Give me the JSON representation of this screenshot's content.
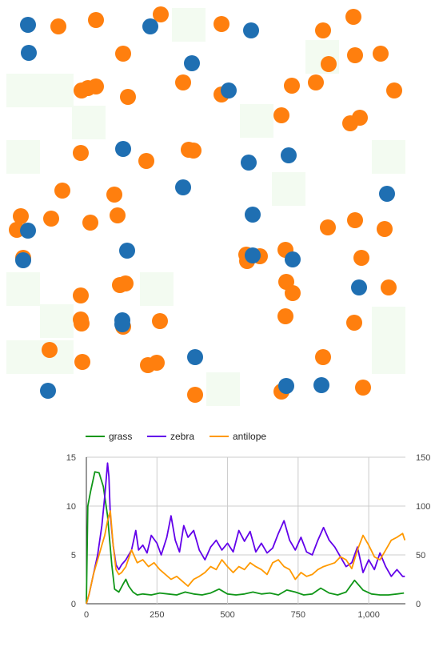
{
  "simulation": {
    "grass_color": "#f3fbf1",
    "zebra_color": "#1f6fb2",
    "antilope_color": "#ff7f0e"
  },
  "chart_data": {
    "type": "line",
    "title": "",
    "xlabel": "",
    "ylabel_left": "",
    "ylabel_right": "",
    "xlim": [
      0,
      1130
    ],
    "ylim_left": [
      0,
      15
    ],
    "ylim_right": [
      0,
      150
    ],
    "x_ticks": [
      0,
      250,
      500,
      750,
      1000
    ],
    "x_tick_labels": [
      "0",
      "250",
      "500",
      "750",
      "1,000"
    ],
    "y_left_ticks": [
      0,
      5,
      10,
      15
    ],
    "y_left_tick_labels": [
      "0",
      "5",
      "10",
      "15"
    ],
    "y_right_ticks": [
      0,
      50,
      100,
      150
    ],
    "y_right_tick_labels": [
      "0",
      "50",
      "100",
      "150"
    ],
    "grid": true,
    "legend_position": "top-left",
    "series": [
      {
        "name": "grass",
        "color": "#109618",
        "axis": "right",
        "x": [
          0,
          5,
          15,
          30,
          45,
          60,
          75,
          90,
          100,
          115,
          130,
          140,
          150,
          165,
          180,
          200,
          230,
          260,
          290,
          320,
          350,
          380,
          410,
          440,
          470,
          500,
          530,
          560,
          590,
          620,
          650,
          680,
          710,
          740,
          770,
          800,
          830,
          860,
          890,
          920,
          950,
          980,
          1010,
          1040,
          1070,
          1100,
          1125
        ],
        "y": [
          0,
          100,
          115,
          135,
          134,
          120,
          90,
          40,
          15,
          12,
          20,
          25,
          18,
          12,
          9,
          10,
          9,
          11,
          10,
          9,
          12,
          10,
          9,
          11,
          15,
          10,
          9,
          10,
          12,
          10,
          11,
          9,
          14,
          12,
          9,
          10,
          16,
          11,
          9,
          12,
          24,
          14,
          10,
          9,
          9,
          10,
          11
        ]
      },
      {
        "name": "zebra",
        "color": "#6200ea",
        "axis": "left",
        "x": [
          0,
          10,
          25,
          40,
          55,
          65,
          75,
          80,
          85,
          95,
          105,
          115,
          125,
          140,
          160,
          175,
          185,
          200,
          215,
          230,
          250,
          265,
          285,
          300,
          315,
          330,
          345,
          360,
          380,
          400,
          420,
          440,
          460,
          480,
          500,
          520,
          540,
          560,
          580,
          600,
          620,
          640,
          660,
          680,
          700,
          720,
          740,
          760,
          780,
          800,
          820,
          840,
          860,
          880,
          900,
          920,
          940,
          960,
          980,
          1000,
          1020,
          1040,
          1060,
          1080,
          1100,
          1120,
          1128
        ],
        "y": [
          0,
          1,
          3,
          5,
          8,
          11,
          14.4,
          13,
          9,
          6,
          4,
          3.5,
          4,
          4.5,
          5.5,
          7.5,
          5.5,
          6,
          5.2,
          7,
          6.2,
          5,
          6.8,
          9,
          6.5,
          5.3,
          8,
          6.8,
          7.5,
          5.5,
          4.5,
          5.8,
          6.5,
          5.5,
          6.2,
          5.3,
          7.5,
          6.4,
          7.4,
          5.3,
          6.2,
          5.2,
          5.7,
          7.2,
          8.5,
          6.5,
          5.5,
          6.8,
          5.3,
          5,
          6.5,
          7.8,
          6.5,
          5.8,
          4.8,
          3.8,
          4.2,
          5.8,
          3.2,
          4.5,
          3.5,
          5.2,
          3.8,
          2.8,
          3.5,
          2.8,
          2.8
        ]
      },
      {
        "name": "antilope",
        "color": "#ff9900",
        "axis": "left",
        "x": [
          0,
          10,
          25,
          40,
          55,
          65,
          75,
          85,
          95,
          105,
          115,
          125,
          140,
          160,
          180,
          200,
          220,
          240,
          260,
          280,
          300,
          320,
          340,
          360,
          380,
          400,
          420,
          440,
          460,
          480,
          500,
          520,
          540,
          560,
          580,
          600,
          620,
          640,
          660,
          680,
          700,
          720,
          740,
          760,
          780,
          800,
          820,
          840,
          860,
          880,
          900,
          920,
          940,
          960,
          980,
          1000,
          1020,
          1040,
          1060,
          1080,
          1100,
          1120,
          1128
        ],
        "y": [
          0,
          1,
          3,
          4.5,
          6,
          7,
          8.5,
          9.5,
          6,
          3.5,
          3,
          3.2,
          3.8,
          5.5,
          4.2,
          4.5,
          3.8,
          4.2,
          3.5,
          3,
          2.5,
          2.8,
          2.3,
          1.8,
          2.5,
          2.8,
          3.2,
          3.8,
          3.5,
          4.5,
          3.8,
          3.2,
          3.8,
          3.5,
          4.2,
          3.8,
          3.5,
          3,
          4.2,
          4.5,
          3.8,
          3.5,
          2.5,
          3.2,
          2.8,
          3,
          3.5,
          3.8,
          4,
          4.2,
          4.8,
          4.5,
          3.6,
          5.5,
          7,
          6,
          4.8,
          4.5,
          5.5,
          6.5,
          6.8,
          7.2,
          6.5
        ]
      }
    ]
  }
}
